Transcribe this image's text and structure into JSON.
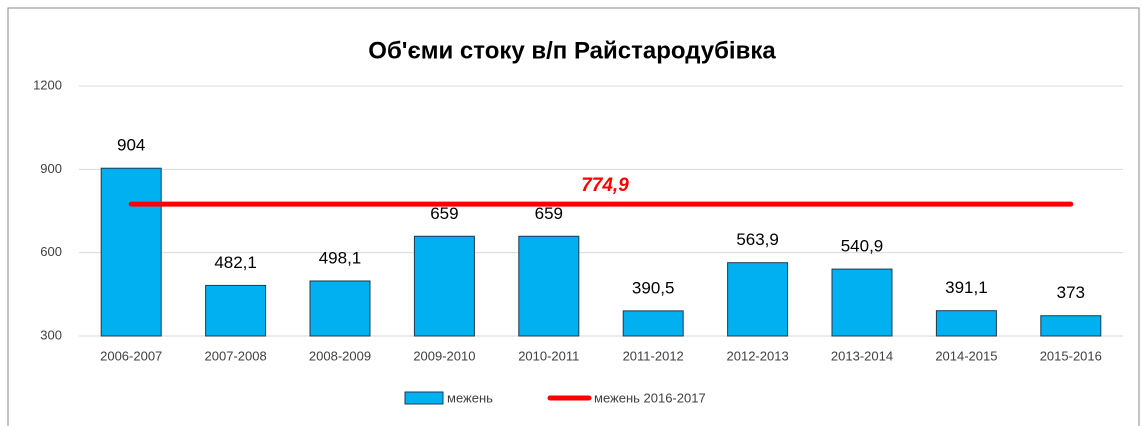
{
  "chart_data": {
    "type": "bar",
    "title": "Об'єми стоку в/п Райстародубівка",
    "categories": [
      "2006-2007",
      "2007-2008",
      "2008-2009",
      "2009-2010",
      "2010-2011",
      "2011-2012",
      "2012-2013",
      "2013-2014",
      "2014-2015",
      "2015-2016"
    ],
    "series": [
      {
        "name": "межень",
        "color": "#00b0f0",
        "values": [
          904,
          482.1,
          498.1,
          659,
          659,
          390.5,
          563.9,
          540.9,
          391.1,
          373
        ],
        "value_labels": [
          "904",
          "482,1",
          "498,1",
          "659",
          "659",
          "390,5",
          "563,9",
          "540,9",
          "391,1",
          "373"
        ]
      }
    ],
    "reference_line": {
      "name": "межень 2016-2017",
      "color": "#ff0000",
      "value": 774.9,
      "label": "774,9"
    },
    "ylim": [
      300,
      1200
    ],
    "yticks": [
      300,
      600,
      900,
      1200
    ],
    "grid": true
  }
}
